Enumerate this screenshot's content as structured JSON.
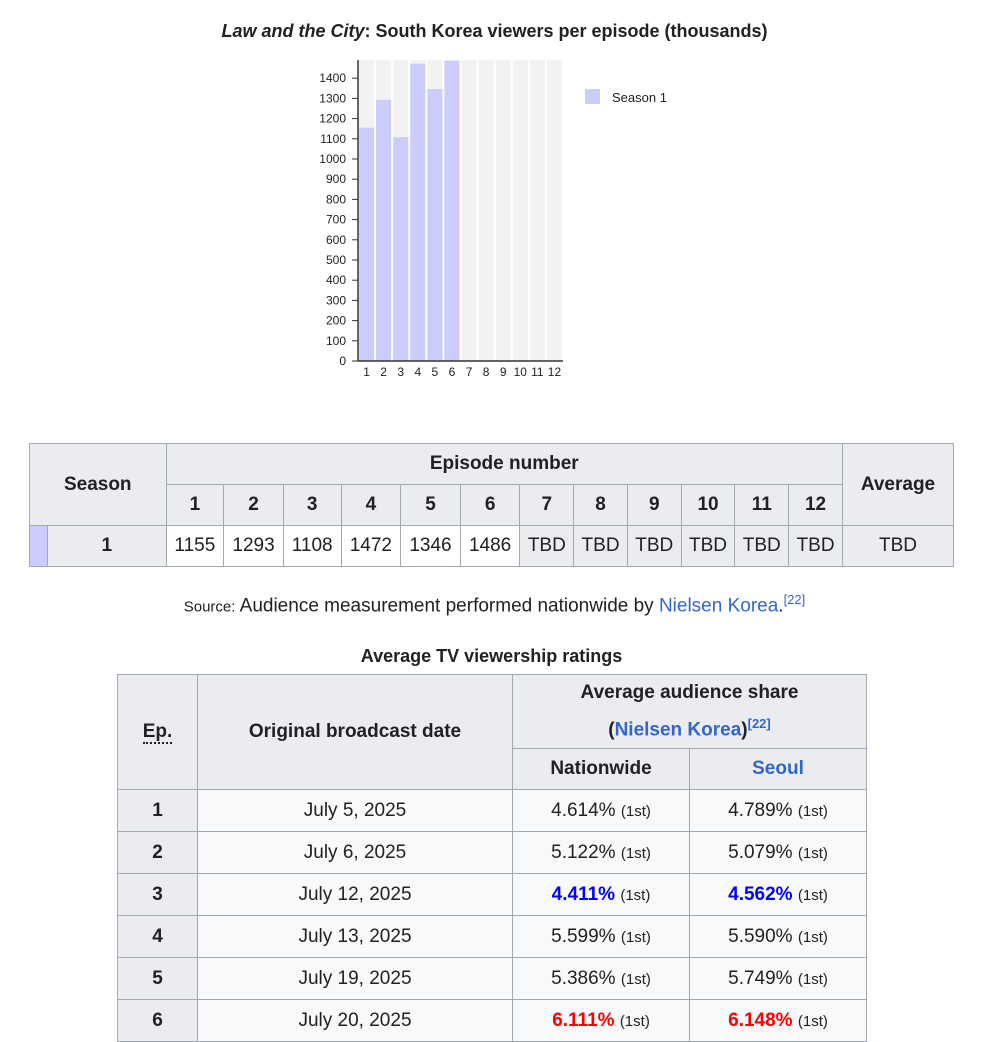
{
  "chart_title": {
    "italic": "Law and the City",
    "rest": ": South Korea viewers per episode (thousands)"
  },
  "chart_data": {
    "type": "bar",
    "title": "Law and the City: South Korea viewers per episode (thousands)",
    "categories": [
      "1",
      "2",
      "3",
      "4",
      "5",
      "6",
      "7",
      "8",
      "9",
      "10",
      "11",
      "12"
    ],
    "series": [
      {
        "name": "Season 1",
        "values": [
          1155,
          1293,
          1108,
          1472,
          1346,
          1486,
          null,
          null,
          null,
          null,
          null,
          null
        ],
        "color": "#ccccff"
      }
    ],
    "yticks": [
      0,
      100,
      200,
      300,
      400,
      500,
      600,
      700,
      800,
      900,
      1000,
      1100,
      1200,
      1300,
      1400
    ],
    "ylim": [
      0,
      1490
    ],
    "legend": "right",
    "background_color": "#f2f2f2"
  },
  "table1": {
    "season_header": "Season",
    "episode_header": "Episode number",
    "average_header": "Average",
    "episodes": [
      "1",
      "2",
      "3",
      "4",
      "5",
      "6",
      "7",
      "8",
      "9",
      "10",
      "11",
      "12"
    ],
    "row": {
      "season": "1",
      "swatch_color": "#ccccff",
      "values": [
        "1155",
        "1293",
        "1108",
        "1472",
        "1346",
        "1486",
        "TBD",
        "TBD",
        "TBD",
        "TBD",
        "TBD",
        "TBD"
      ],
      "average": "TBD"
    }
  },
  "source": {
    "label": "Source:",
    "text": "Audience measurement performed nationwide by ",
    "link": "Nielsen Korea",
    "suffix": ".",
    "ref": "[22]"
  },
  "table2": {
    "caption": "Average TV viewership ratings",
    "ep_header": "Ep.",
    "date_header": "Original broadcast date",
    "share_header": "Average audience share",
    "share_open": "(",
    "share_link": "Nielsen Korea",
    "share_close": ")",
    "share_ref": "[22]",
    "nationwide": "Nationwide",
    "seoul": "Seoul",
    "rows": [
      {
        "ep": "1",
        "date": "July 5, 2025",
        "nat": "4.614%",
        "nat_rank": "(1st)",
        "seoul": "4.789%",
        "seoul_rank": "(1st)",
        "mark": ""
      },
      {
        "ep": "2",
        "date": "July 6, 2025",
        "nat": "5.122%",
        "nat_rank": "(1st)",
        "seoul": "5.079%",
        "seoul_rank": "(1st)",
        "mark": ""
      },
      {
        "ep": "3",
        "date": "July 12, 2025",
        "nat": "4.411%",
        "nat_rank": "(1st)",
        "seoul": "4.562%",
        "seoul_rank": "(1st)",
        "mark": "lo"
      },
      {
        "ep": "4",
        "date": "July 13, 2025",
        "nat": "5.599%",
        "nat_rank": "(1st)",
        "seoul": "5.590%",
        "seoul_rank": "(1st)",
        "mark": ""
      },
      {
        "ep": "5",
        "date": "July 19, 2025",
        "nat": "5.386%",
        "nat_rank": "(1st)",
        "seoul": "5.749%",
        "seoul_rank": "(1st)",
        "mark": ""
      },
      {
        "ep": "6",
        "date": "July 20, 2025",
        "nat": "6.111%",
        "nat_rank": "(1st)",
        "seoul": "6.148%",
        "seoul_rank": "(1st)",
        "mark": "hi"
      }
    ]
  },
  "colors": {
    "lowest": "#0000ff",
    "highest": "#ff0000",
    "link": "#3366cc"
  }
}
